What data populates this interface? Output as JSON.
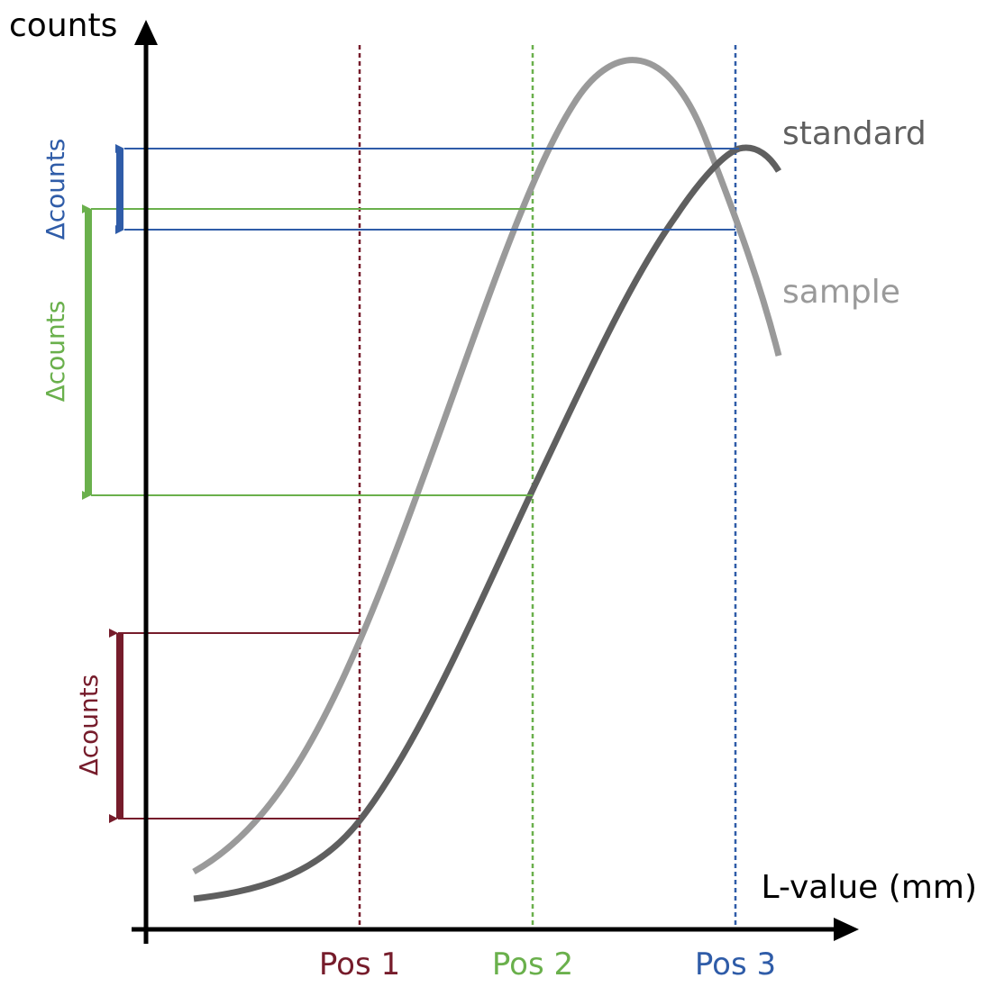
{
  "axes": {
    "y_label": "counts",
    "x_label": "L-value (mm)"
  },
  "curves": {
    "standard": {
      "label": "standard",
      "color": "#5f5f5f"
    },
    "sample": {
      "label": "sample",
      "color": "#9a9a9a"
    }
  },
  "positions": [
    {
      "label": "Pos 1",
      "color": "#761c2b"
    },
    {
      "label": "Pos 2",
      "color": "#6ab04c"
    },
    {
      "label": "Pos 3",
      "color": "#2f5ca8"
    }
  ],
  "deltas": [
    {
      "label": "Δcounts",
      "color": "#2f5ca8"
    },
    {
      "label": "Δcounts",
      "color": "#6ab04c"
    },
    {
      "label": "Δcounts",
      "color": "#761c2b"
    }
  ]
}
